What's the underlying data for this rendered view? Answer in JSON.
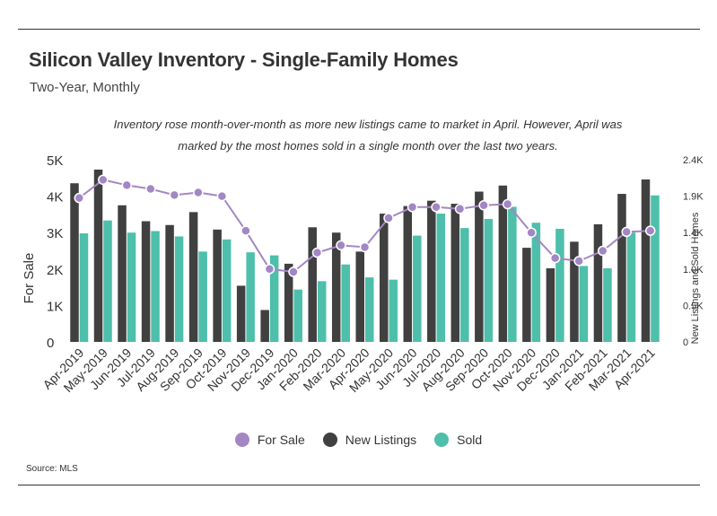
{
  "title": "Silicon Valley Inventory - Single-Family Homes",
  "subtitle": "Two-Year, Monthly",
  "annotation_line1": "Inventory rose month-over-month as more new listings came to market in April. However, April was",
  "annotation_line2": "marked by the most homes sold in a single month over the last two years.",
  "source": "Source: MLS",
  "colors": {
    "for_sale": "#a387c4",
    "new_listings": "#404040",
    "sold": "#4dbfaa",
    "axis_text": "#333333"
  },
  "chart_data": {
    "type": "bar",
    "categories": [
      "Apr-2019",
      "May-2019",
      "Jun-2019",
      "Jul-2019",
      "Aug-2019",
      "Sep-2019",
      "Oct-2019",
      "Nov-2019",
      "Dec-2019",
      "Jan-2020",
      "Feb-2020",
      "Mar-2020",
      "Apr-2020",
      "May-2020",
      "Jun-2020",
      "Jul-2020",
      "Aug-2020",
      "Sep-2020",
      "Oct-2020",
      "Nov-2020",
      "Dec-2020",
      "Jan-2021",
      "Feb-2021",
      "Mar-2021",
      "Apr-2021"
    ],
    "left_axis": {
      "label": "For Sale",
      "ylim": [
        0,
        5000
      ],
      "ticks": [
        "0",
        "1K",
        "2K",
        "3K",
        "4K",
        "5K"
      ]
    },
    "right_axis": {
      "label": "New Listings and Sold Homes",
      "ylim": [
        0,
        2400
      ],
      "ticks": [
        "0",
        "0.5K",
        "1.0K",
        "1.4K",
        "1.9K",
        "2.4K"
      ]
    },
    "series": [
      {
        "name": "For Sale",
        "type": "line",
        "axis": "left",
        "values": [
          3950,
          4450,
          4300,
          4200,
          4030,
          4100,
          4000,
          3050,
          2000,
          1920,
          2450,
          2650,
          2600,
          3400,
          3700,
          3700,
          3650,
          3750,
          3780,
          3000,
          2300,
          2220,
          2500,
          3020,
          3050
        ]
      },
      {
        "name": "New Listings",
        "type": "bar",
        "axis": "right",
        "values": [
          2090,
          2270,
          1800,
          1590,
          1540,
          1710,
          1480,
          740,
          420,
          1030,
          1510,
          1440,
          1190,
          1690,
          1790,
          1860,
          1820,
          1980,
          2060,
          1240,
          970,
          1320,
          1550,
          1950,
          2140
        ]
      },
      {
        "name": "Sold",
        "type": "bar",
        "axis": "right",
        "values": [
          1430,
          1600,
          1440,
          1460,
          1390,
          1190,
          1350,
          1180,
          1140,
          690,
          800,
          1020,
          850,
          820,
          1400,
          1690,
          1500,
          1620,
          1780,
          1570,
          1490,
          1000,
          970,
          1440,
          1930
        ]
      }
    ],
    "legend": [
      "For Sale",
      "New Listings",
      "Sold"
    ],
    "legend_position": "bottom"
  }
}
